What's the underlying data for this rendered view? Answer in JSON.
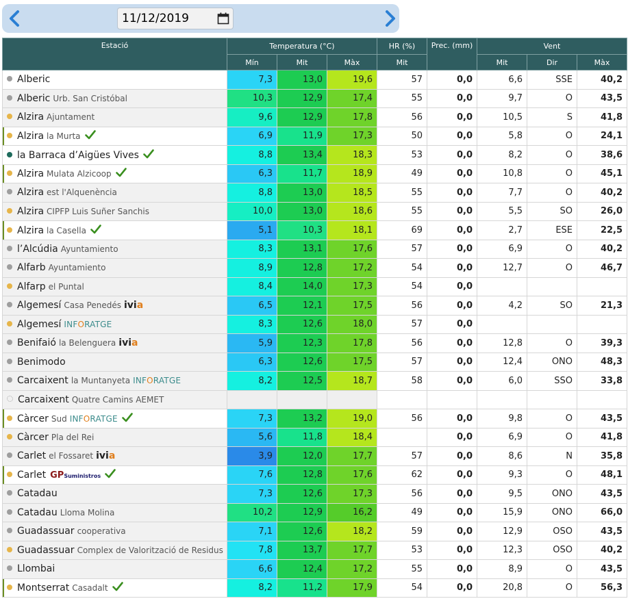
{
  "date": {
    "value": "11/12/2019"
  },
  "headers": {
    "station": "Estació",
    "temperature": "Temperatura (°C)",
    "humidity": "HR (%)",
    "precip": "Prec. (mm)",
    "wind": "Vent",
    "min": "Mín",
    "mit": "Mit",
    "max": "Màx",
    "dir": "Dir"
  },
  "colors": {
    "dot_gray": "#9e9e9e",
    "dot_yellow": "#e6b54a",
    "dot_teal": "#1e6b5c",
    "check": "#3a8f1f"
  },
  "rows": [
    {
      "name": "Alberic",
      "sub": "",
      "dot": "dot_gray",
      "check": false,
      "tag": "",
      "shade": false,
      "sel": false,
      "min": "7,3",
      "mit": "13,0",
      "max": "19,6",
      "hr": "57",
      "prec": "0,0",
      "wmit": "6,6",
      "dir": "SSE",
      "wmax": "40,2",
      "cmin": "#2ad4f6",
      "cmit": "#1dcc52",
      "cmax": "#b5e61d"
    },
    {
      "name": "Alberic",
      "sub": "Urb. San Cristóbal",
      "dot": "dot_gray",
      "check": false,
      "tag": "",
      "shade": true,
      "sel": false,
      "min": "10,3",
      "mit": "12,9",
      "max": "17,4",
      "hr": "55",
      "prec": "0,0",
      "wmit": "9,7",
      "dir": "O",
      "wmax": "43,5",
      "cmin": "#20e084",
      "cmit": "#1dcc52",
      "cmax": "#6fd32a"
    },
    {
      "name": "Alzira",
      "sub": "Ajuntament",
      "dot": "dot_yellow",
      "check": false,
      "tag": "",
      "shade": true,
      "sel": false,
      "min": "9,6",
      "mit": "12,9",
      "max": "17,8",
      "hr": "56",
      "prec": "0,0",
      "wmit": "10,5",
      "dir": "S",
      "wmax": "41,8",
      "cmin": "#16eec3",
      "cmit": "#1dcc52",
      "cmax": "#6fd32a"
    },
    {
      "name": "Alzira",
      "sub": "la Murta",
      "dot": "dot_yellow",
      "check": true,
      "tag": "",
      "shade": false,
      "sel": true,
      "min": "6,9",
      "mit": "11,9",
      "max": "17,3",
      "hr": "50",
      "prec": "0,0",
      "wmit": "5,8",
      "dir": "O",
      "wmax": "24,1",
      "cmin": "#2ad4f6",
      "cmit": "#18e28c",
      "cmax": "#6fd32a"
    },
    {
      "name": "la Barraca d’Aigües Vives",
      "sub": "",
      "dot": "dot_teal",
      "check": true,
      "tag": "",
      "shade": false,
      "sel": false,
      "min": "8,8",
      "mit": "13,4",
      "max": "18,3",
      "hr": "53",
      "prec": "0,0",
      "wmit": "8,2",
      "dir": "O",
      "wmax": "38,6",
      "cmin": "#15f0e0",
      "cmit": "#1dcc52",
      "cmax": "#b5e61d"
    },
    {
      "name": "Alzira",
      "sub": "Mulata Alzicoop",
      "dot": "dot_yellow",
      "check": true,
      "tag": "",
      "shade": false,
      "sel": true,
      "min": "6,3",
      "mit": "11,7",
      "max": "18,9",
      "hr": "49",
      "prec": "0,0",
      "wmit": "10,8",
      "dir": "O",
      "wmax": "45,1",
      "cmin": "#2ac8f5",
      "cmit": "#18e28c",
      "cmax": "#b5e61d"
    },
    {
      "name": "Alzira",
      "sub": "est l'Alquenència",
      "dot": "dot_gray",
      "check": false,
      "tag": "",
      "shade": true,
      "sel": false,
      "min": "8,8",
      "mit": "13,0",
      "max": "18,5",
      "hr": "55",
      "prec": "0,0",
      "wmit": "7,7",
      "dir": "O",
      "wmax": "40,2",
      "cmin": "#15f0e0",
      "cmit": "#1dcc52",
      "cmax": "#b5e61d"
    },
    {
      "name": "Alzira",
      "sub": "CIPFP Luis Suñer Sanchis",
      "dot": "dot_yellow",
      "check": false,
      "tag": "",
      "shade": true,
      "sel": false,
      "min": "10,0",
      "mit": "13,0",
      "max": "18,6",
      "hr": "55",
      "prec": "0,0",
      "wmit": "5,5",
      "dir": "SO",
      "wmax": "26,0",
      "cmin": "#16eec3",
      "cmit": "#1dcc52",
      "cmax": "#b5e61d"
    },
    {
      "name": "Alzira",
      "sub": "la Casella",
      "dot": "dot_yellow",
      "check": true,
      "tag": "",
      "shade": false,
      "sel": true,
      "min": "5,1",
      "mit": "10,3",
      "max": "18,1",
      "hr": "69",
      "prec": "0,0",
      "wmit": "2,7",
      "dir": "ESE",
      "wmax": "22,5",
      "cmin": "#2aaaf0",
      "cmit": "#20e084",
      "cmax": "#b5e61d"
    },
    {
      "name": "l’Alcúdia",
      "sub": "Ayuntamiento",
      "dot": "dot_gray",
      "check": false,
      "tag": "",
      "shade": true,
      "sel": false,
      "min": "8,3",
      "mit": "13,1",
      "max": "17,6",
      "hr": "57",
      "prec": "0,0",
      "wmit": "6,9",
      "dir": "O",
      "wmax": "40,2",
      "cmin": "#15f0e0",
      "cmit": "#1dcc52",
      "cmax": "#6fd32a"
    },
    {
      "name": "Alfarb",
      "sub": "Ayuntamiento",
      "dot": "dot_gray",
      "check": false,
      "tag": "",
      "shade": true,
      "sel": false,
      "min": "8,9",
      "mit": "12,8",
      "max": "17,2",
      "hr": "54",
      "prec": "0,0",
      "wmit": "12,7",
      "dir": "O",
      "wmax": "46,7",
      "cmin": "#15f0e0",
      "cmit": "#1dcc52",
      "cmax": "#6fd32a"
    },
    {
      "name": "Alfarp",
      "sub": "el Puntal",
      "dot": "dot_yellow",
      "check": false,
      "tag": "",
      "shade": true,
      "sel": false,
      "min": "8,4",
      "mit": "14,0",
      "max": "17,3",
      "hr": "54",
      "prec": "0,0",
      "wmit": "",
      "dir": "",
      "wmax": "",
      "cmin": "#15f0e0",
      "cmit": "#1dcc52",
      "cmax": "#6fd32a"
    },
    {
      "name": "Algemesí",
      "sub": "Casa Penedés",
      "dot": "dot_gray",
      "check": false,
      "tag": "ivia",
      "shade": true,
      "sel": false,
      "min": "6,5",
      "mit": "12,1",
      "max": "17,5",
      "hr": "56",
      "prec": "0,0",
      "wmit": "4,2",
      "dir": "SO",
      "wmax": "21,3",
      "cmin": "#2ac8f5",
      "cmit": "#1dcc52",
      "cmax": "#6fd32a"
    },
    {
      "name": "Algemesí",
      "sub": "",
      "dot": "dot_yellow",
      "check": false,
      "tag": "inforatge",
      "shade": true,
      "sel": false,
      "min": "8,3",
      "mit": "12,6",
      "max": "18,0",
      "hr": "57",
      "prec": "0,0",
      "wmit": "",
      "dir": "",
      "wmax": "",
      "cmin": "#15f0e0",
      "cmit": "#1dcc52",
      "cmax": "#6fd32a"
    },
    {
      "name": "Benifaió",
      "sub": "la Belenguera",
      "dot": "dot_gray",
      "check": false,
      "tag": "ivia",
      "shade": true,
      "sel": false,
      "min": "5,9",
      "mit": "12,3",
      "max": "17,8",
      "hr": "56",
      "prec": "0,0",
      "wmit": "12,8",
      "dir": "O",
      "wmax": "39,3",
      "cmin": "#2ab8f3",
      "cmit": "#1dcc52",
      "cmax": "#6fd32a"
    },
    {
      "name": "Benimodo",
      "sub": "",
      "dot": "dot_gray",
      "check": false,
      "tag": "",
      "shade": true,
      "sel": false,
      "min": "6,3",
      "mit": "12,6",
      "max": "17,5",
      "hr": "57",
      "prec": "0,0",
      "wmit": "12,4",
      "dir": "ONO",
      "wmax": "48,3",
      "cmin": "#2ac8f5",
      "cmit": "#1dcc52",
      "cmax": "#6fd32a"
    },
    {
      "name": "Carcaixent",
      "sub": "la Muntanyeta",
      "dot": "dot_gray",
      "check": false,
      "tag": "inforatge",
      "shade": true,
      "sel": false,
      "min": "8,2",
      "mit": "12,5",
      "max": "18,7",
      "hr": "58",
      "prec": "0,0",
      "wmit": "6,0",
      "dir": "SSO",
      "wmax": "33,8",
      "cmin": "#15f0e0",
      "cmit": "#1dcc52",
      "cmax": "#b5e61d"
    },
    {
      "name": "Carcaixent",
      "sub": "Quatre Camins AEMET",
      "dot": "dot_none",
      "check": false,
      "tag": "",
      "shade": true,
      "sel": false,
      "min": "",
      "mit": "",
      "max": "",
      "hr": "",
      "prec": "",
      "wmit": "",
      "dir": "",
      "wmax": "",
      "cmin": "",
      "cmit": "",
      "cmax": ""
    },
    {
      "name": "Càrcer",
      "sub": "Sud",
      "dot": "dot_yellow",
      "check": true,
      "tag": "inforatge",
      "shade": false,
      "sel": true,
      "min": "7,3",
      "mit": "13,2",
      "max": "19,0",
      "hr": "56",
      "prec": "0,0",
      "wmit": "9,8",
      "dir": "O",
      "wmax": "43,5",
      "cmin": "#2ad4f6",
      "cmit": "#1dcc52",
      "cmax": "#b5e61d"
    },
    {
      "name": "Càrcer",
      "sub": "Pla del Rei",
      "dot": "dot_yellow",
      "check": false,
      "tag": "",
      "shade": true,
      "sel": false,
      "min": "5,6",
      "mit": "11,8",
      "max": "18,4",
      "hr": "",
      "prec": "0,0",
      "wmit": "6,9",
      "dir": "O",
      "wmax": "41,8",
      "cmin": "#2ab8f3",
      "cmit": "#18e28c",
      "cmax": "#b5e61d"
    },
    {
      "name": "Carlet",
      "sub": "el Fossaret",
      "dot": "dot_gray",
      "check": false,
      "tag": "ivia",
      "shade": true,
      "sel": false,
      "min": "3,9",
      "mit": "12,0",
      "max": "17,7",
      "hr": "57",
      "prec": "0,0",
      "wmit": "8,6",
      "dir": "N",
      "wmax": "35,8",
      "cmin": "#2a8ae8",
      "cmit": "#1dcc52",
      "cmax": "#6fd32a"
    },
    {
      "name": "Carlet",
      "sub": "",
      "dot": "dot_yellow",
      "check": true,
      "tag": "gp",
      "shade": false,
      "sel": true,
      "min": "7,6",
      "mit": "12,8",
      "max": "17,6",
      "hr": "62",
      "prec": "0,0",
      "wmit": "9,3",
      "dir": "O",
      "wmax": "48,1",
      "cmin": "#2ad4f6",
      "cmit": "#1dcc52",
      "cmax": "#6fd32a"
    },
    {
      "name": "Catadau",
      "sub": "",
      "dot": "dot_gray",
      "check": false,
      "tag": "",
      "shade": true,
      "sel": false,
      "min": "7,3",
      "mit": "12,6",
      "max": "17,3",
      "hr": "56",
      "prec": "0,0",
      "wmit": "9,5",
      "dir": "ONO",
      "wmax": "43,5",
      "cmin": "#2ad4f6",
      "cmit": "#1dcc52",
      "cmax": "#6fd32a"
    },
    {
      "name": "Catadau",
      "sub": "Lloma Molina",
      "dot": "dot_gray",
      "check": false,
      "tag": "",
      "shade": true,
      "sel": false,
      "min": "10,2",
      "mit": "12,9",
      "max": "16,2",
      "hr": "49",
      "prec": "0,0",
      "wmit": "15,9",
      "dir": "ONO",
      "wmax": "66,0",
      "cmin": "#20e084",
      "cmit": "#1dcc52",
      "cmax": "#55cc2a"
    },
    {
      "name": "Guadassuar",
      "sub": "cooperativa",
      "dot": "dot_gray",
      "check": false,
      "tag": "",
      "shade": true,
      "sel": false,
      "min": "7,1",
      "mit": "12,6",
      "max": "18,2",
      "hr": "59",
      "prec": "0,0",
      "wmit": "12,9",
      "dir": "OSO",
      "wmax": "43,5",
      "cmin": "#2ad4f6",
      "cmit": "#1dcc52",
      "cmax": "#b5e61d"
    },
    {
      "name": "Guadassuar",
      "sub": "Complex de Valorització de Residus",
      "dot": "dot_yellow",
      "check": false,
      "tag": "",
      "shade": true,
      "sel": false,
      "min": "7,8",
      "mit": "13,7",
      "max": "17,7",
      "hr": "53",
      "prec": "0,0",
      "wmit": "12,3",
      "dir": "OSO",
      "wmax": "40,2",
      "cmin": "#22e2f4",
      "cmit": "#1dcc52",
      "cmax": "#6fd32a"
    },
    {
      "name": "Llombai",
      "sub": "",
      "dot": "dot_gray",
      "check": false,
      "tag": "",
      "shade": true,
      "sel": false,
      "min": "6,6",
      "mit": "12,4",
      "max": "17,2",
      "hr": "55",
      "prec": "0,0",
      "wmit": "8,9",
      "dir": "O",
      "wmax": "43,5",
      "cmin": "#2ad4f6",
      "cmit": "#1dcc52",
      "cmax": "#6fd32a"
    },
    {
      "name": "Montserrat",
      "sub": "Casadalt",
      "dot": "dot_yellow",
      "check": true,
      "tag": "",
      "shade": false,
      "sel": true,
      "min": "8,2",
      "mit": "11,2",
      "max": "17,9",
      "hr": "54",
      "prec": "0,0",
      "wmit": "20,8",
      "dir": "O",
      "wmax": "56,3",
      "cmin": "#15f0e0",
      "cmit": "#18e28c",
      "cmax": "#6fd32a"
    }
  ],
  "tags": {
    "ivia": {
      "a": "ivi",
      "b": "a"
    },
    "inforatge": {
      "a": "INF",
      "o": "O",
      "b": "RATGE"
    },
    "gp": {
      "a": "GP",
      "b": "Suministros"
    }
  }
}
